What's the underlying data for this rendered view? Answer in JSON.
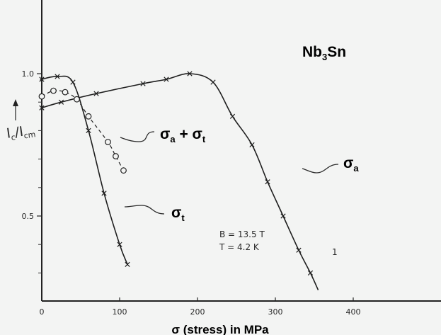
{
  "chart_data": {
    "type": "line",
    "title": "Nb3Sn",
    "title_parts": {
      "base": "Nb",
      "sub": "3",
      "rest": "Sn"
    },
    "xlabel": "σ (stress) in MPa",
    "ylabel": "I",
    "ylabel_parts": {
      "num": "I",
      "num_sub": "c",
      "den": "I",
      "den_sub": "cm"
    },
    "xlim": [
      0,
      480
    ],
    "ylim": [
      0.2,
      1.3
    ],
    "x_ticks": [
      "0",
      "100",
      "200",
      "300",
      "400"
    ],
    "x_tick_values": [
      0,
      100,
      200,
      300,
      400
    ],
    "y_ticks": [
      "0.5",
      "1.0"
    ],
    "y_tick_values": [
      0.5,
      1.0
    ],
    "grid": false,
    "conditions": [
      "B = 13.5 T",
      "T = 4.2 K"
    ],
    "end_label": "1",
    "series": [
      {
        "name": "σa",
        "name_parts": {
          "base": "σ",
          "sub": "a"
        },
        "marker": "x",
        "line": "solid",
        "x": [
          0,
          25,
          70,
          130,
          160,
          190,
          220,
          245,
          270,
          290,
          310,
          330,
          345
        ],
        "y": [
          0.88,
          0.9,
          0.93,
          0.965,
          0.98,
          1.0,
          0.97,
          0.85,
          0.75,
          0.62,
          0.5,
          0.38,
          0.3
        ],
        "curve_end": {
          "x": 355,
          "y": 0.24
        }
      },
      {
        "name": "σt",
        "name_parts": {
          "base": "σ",
          "sub": "t"
        },
        "marker": "x",
        "line": "solid",
        "x": [
          0,
          20,
          40,
          60,
          80,
          100,
          110
        ],
        "y": [
          0.98,
          0.99,
          0.97,
          0.8,
          0.58,
          0.4,
          0.33
        ],
        "curve_start": {
          "x": 0,
          "y": 0.975
        }
      },
      {
        "name": "σa + σt",
        "name_parts": {
          "a": "σ",
          "a_sub": "a",
          "plus": " + ",
          "b": "σ",
          "b_sub": "t"
        },
        "marker": "o",
        "line": "dashed",
        "x": [
          0,
          15,
          30,
          45,
          60,
          85,
          95,
          105
        ],
        "y": [
          0.92,
          0.94,
          0.935,
          0.91,
          0.85,
          0.76,
          0.71,
          0.66
        ]
      }
    ]
  }
}
